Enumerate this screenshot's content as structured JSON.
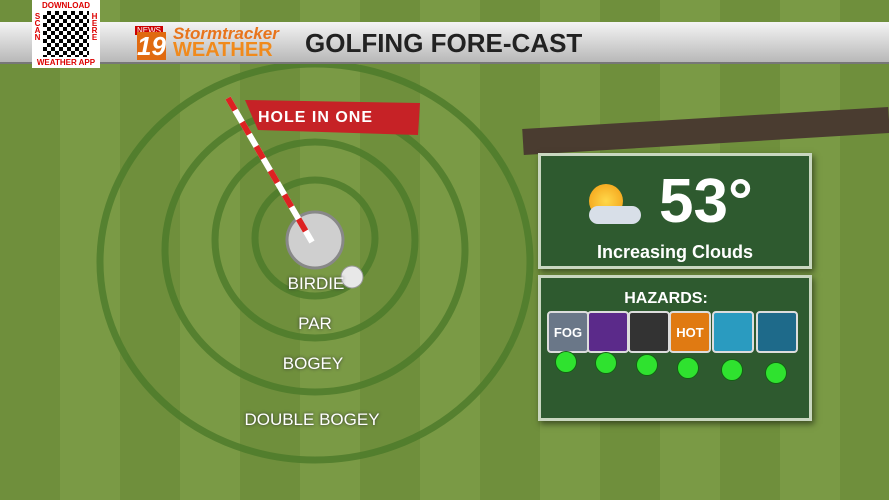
{
  "qr": {
    "top": "DOWNLOAD",
    "left": "SCAN",
    "right": "HERE",
    "bottom": "WEATHER APP"
  },
  "logo": {
    "news": "NEWS",
    "number": "19",
    "brand": "Stormtracker",
    "weather": "WEATHER"
  },
  "header": {
    "title": "GOLFING FORE-CAST"
  },
  "course": {
    "flag": "HOLE IN ONE",
    "rings": [
      "BIRDIE",
      "PAR",
      "BOGEY",
      "DOUBLE BOGEY"
    ]
  },
  "forecast": {
    "temperature": "53°",
    "condition": "Increasing Clouds"
  },
  "hazards": {
    "title": "HAZARDS:",
    "icon_labels": [
      "FOG",
      "HOT"
    ]
  }
}
